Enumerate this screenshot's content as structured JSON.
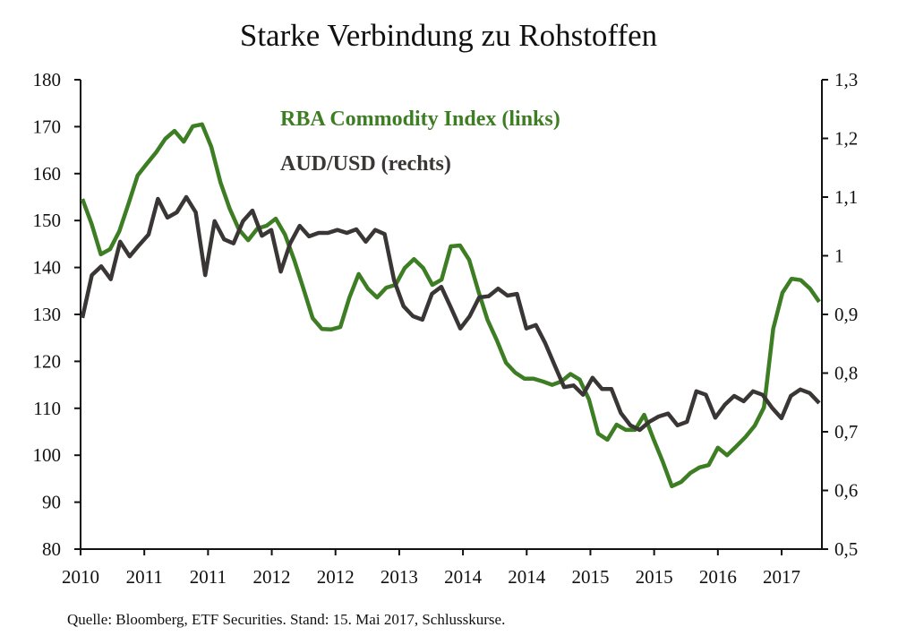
{
  "chart_data": {
    "type": "line",
    "title": "Starke Verbindung zu Rohstoffen",
    "source": "Quelle: Bloomberg, ETF Securities. Stand: 15. Mai 2017, Schlusskurse.",
    "x_tick_labels": [
      "2010",
      "2011",
      "2011",
      "2012",
      "2012",
      "2013",
      "2014",
      "2014",
      "2015",
      "2015",
      "2016",
      "2017"
    ],
    "y_left": {
      "ylim": [
        80,
        180
      ],
      "ticks": [
        "80",
        "90",
        "100",
        "110",
        "120",
        "130",
        "140",
        "150",
        "160",
        "170",
        "180"
      ]
    },
    "y_right": {
      "ylim": [
        0.5,
        1.3
      ],
      "ticks": [
        "0,5",
        "0,6",
        "0,7",
        "0,8",
        "0,9",
        "1",
        "1,1",
        "1,2",
        "1,3"
      ]
    },
    "grid": false,
    "legend_placement": "top-center",
    "series": [
      {
        "name": "RBA Commodity Index (links)",
        "axis": "left",
        "color": "#3d7d23",
        "values": [
          154.6,
          149.3,
          142.8,
          143.9,
          147.7,
          153.5,
          159.6,
          162.1,
          164.5,
          167.4,
          169.1,
          166.8,
          170.1,
          170.5,
          165.7,
          158.1,
          152.5,
          148.1,
          145.8,
          148.3,
          148.9,
          150.4,
          147.0,
          141.6,
          135.5,
          129.2,
          126.9,
          126.8,
          127.3,
          133.6,
          138.6,
          135.5,
          133.6,
          135.7,
          136.3,
          139.9,
          141.8,
          139.9,
          136.3,
          137.4,
          144.5,
          144.7,
          141.6,
          134.9,
          128.8,
          124.5,
          119.7,
          117.6,
          116.3,
          116.3,
          115.7,
          115.0,
          115.7,
          117.3,
          116.1,
          111.9,
          104.6,
          103.3,
          106.5,
          105.4,
          105.4,
          108.6,
          103.5,
          98.7,
          93.4,
          94.3,
          96.2,
          97.4,
          97.9,
          101.6,
          100.0,
          101.9,
          103.9,
          106.3,
          110.2,
          126.9,
          134.6,
          137.6,
          137.3,
          135.5,
          132.7
        ]
      },
      {
        "name": "AUD/USD (rechts)",
        "axis": "right",
        "color": "#3a3635",
        "values": [
          0.894,
          0.967,
          0.982,
          0.96,
          1.024,
          0.999,
          1.018,
          1.036,
          1.097,
          1.065,
          1.074,
          1.1,
          1.074,
          0.967,
          1.059,
          1.028,
          1.021,
          1.059,
          1.077,
          1.034,
          1.044,
          0.973,
          1.021,
          1.051,
          1.033,
          1.039,
          1.039,
          1.044,
          1.039,
          1.045,
          1.024,
          1.044,
          1.037,
          0.958,
          0.914,
          0.897,
          0.891,
          0.935,
          0.947,
          0.912,
          0.876,
          0.897,
          0.929,
          0.931,
          0.944,
          0.932,
          0.935,
          0.876,
          0.882,
          0.851,
          0.813,
          0.776,
          0.779,
          0.763,
          0.792,
          0.773,
          0.773,
          0.732,
          0.711,
          0.703,
          0.717,
          0.726,
          0.731,
          0.711,
          0.717,
          0.769,
          0.763,
          0.724,
          0.746,
          0.761,
          0.752,
          0.769,
          0.763,
          0.741,
          0.723,
          0.761,
          0.772,
          0.766,
          0.749
        ]
      }
    ]
  }
}
